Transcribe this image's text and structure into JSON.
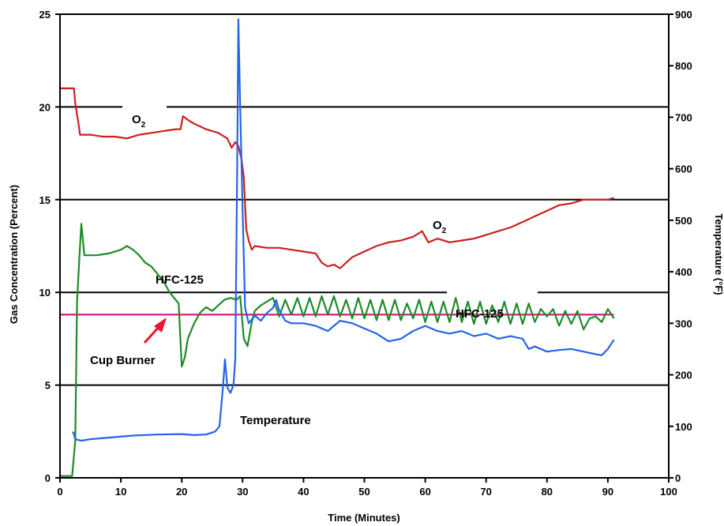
{
  "chart_data": {
    "type": "line",
    "xlabel": "Time (Minutes)",
    "ylabel": "Gas Concentration (Percent)",
    "y2label": "Temperature (°F)",
    "xlim": [
      0,
      100
    ],
    "ylim": [
      0,
      25
    ],
    "y2lim": [
      0,
      900
    ],
    "xticks": [
      "0",
      "10",
      "20",
      "30",
      "40",
      "50",
      "60",
      "70",
      "80",
      "90",
      "100"
    ],
    "yticks": [
      "0",
      "5",
      "10",
      "15",
      "20",
      "25"
    ],
    "y2ticks": [
      "0",
      "100",
      "200",
      "300",
      "400",
      "500",
      "600",
      "700",
      "800",
      "900"
    ],
    "gridlines_y": [
      5,
      10,
      15,
      20
    ],
    "reference_line": {
      "name": "Cup Burner",
      "value": 8.8,
      "color": "#d6007a"
    },
    "annotations": {
      "o2_upper": "O",
      "o2_upper_sub": "2",
      "o2_lower": "O",
      "o2_lower_sub": "2",
      "hfc_upper": "HFC-125",
      "hfc_lower": "HFC-125",
      "cup_burner": "Cup Burner",
      "temperature": "Temperature"
    },
    "series": [
      {
        "name": "O2",
        "axis": "left",
        "color": "#cc1f1f",
        "x": [
          0,
          1,
          2.3,
          2.5,
          3,
          3.3,
          5,
          7,
          9,
          11,
          13,
          15,
          17,
          19,
          19.8,
          20.2,
          21,
          22,
          24,
          26,
          27.5,
          28.2,
          28.8,
          29.3,
          29.8,
          30.2,
          30.6,
          31,
          31.5,
          32,
          34,
          36,
          38,
          40,
          42,
          43,
          44,
          45,
          46,
          47,
          48,
          50,
          52,
          54,
          56,
          58,
          59.5,
          60.5,
          62,
          64,
          66,
          68,
          70,
          72,
          74,
          76,
          78,
          80,
          82,
          84,
          86,
          88,
          90,
          91
        ],
        "y": [
          21,
          21,
          21,
          20.2,
          19.2,
          18.5,
          18.5,
          18.4,
          18.4,
          18.3,
          18.5,
          18.6,
          18.7,
          18.8,
          18.8,
          19.5,
          19.3,
          19.1,
          18.8,
          18.6,
          18.3,
          17.8,
          18.1,
          17.9,
          17.2,
          16.2,
          13.4,
          12.8,
          12.3,
          12.5,
          12.4,
          12.4,
          12.3,
          12.2,
          12.1,
          11.6,
          11.4,
          11.5,
          11.3,
          11.6,
          11.9,
          12.2,
          12.5,
          12.7,
          12.8,
          13.0,
          13.3,
          12.7,
          12.9,
          12.7,
          12.8,
          12.9,
          13.1,
          13.3,
          13.5,
          13.8,
          14.1,
          14.4,
          14.7,
          14.8,
          15.0,
          15.0,
          15.0,
          15.1
        ]
      },
      {
        "name": "HFC-125",
        "axis": "left",
        "color": "#1f8a2a",
        "x": [
          0,
          2,
          2.5,
          2.8,
          3.2,
          3.5,
          4,
          6,
          8,
          10,
          11,
          12,
          13,
          14,
          15,
          16,
          17,
          18,
          19,
          19.5,
          20,
          20.5,
          21,
          22,
          23,
          24,
          25,
          26,
          27,
          28,
          29,
          29.6,
          30.2,
          30.8,
          31.5,
          32,
          33,
          34,
          35,
          36,
          37,
          38,
          39,
          40,
          41,
          42,
          43,
          44,
          45,
          46,
          47,
          48,
          49,
          50,
          51,
          52,
          53,
          54,
          55,
          56,
          57,
          58,
          59,
          60,
          61,
          62,
          63,
          64,
          65,
          66,
          67,
          68,
          69,
          70,
          71,
          72,
          73,
          74,
          75,
          76,
          77,
          78,
          79,
          80,
          81,
          82,
          83,
          84,
          85,
          86,
          87,
          88,
          89,
          90,
          91
        ],
        "y": [
          0.1,
          0.1,
          2.0,
          9.5,
          12.0,
          13.7,
          12.0,
          12.0,
          12.1,
          12.3,
          12.5,
          12.3,
          12.0,
          11.6,
          11.4,
          11.0,
          10.6,
          10.0,
          9.6,
          9.4,
          6.0,
          6.5,
          7.5,
          8.3,
          8.9,
          9.2,
          9.0,
          9.3,
          9.6,
          9.7,
          9.6,
          9.8,
          7.5,
          7.1,
          8.4,
          9.0,
          9.3,
          9.5,
          9.7,
          8.7,
          9.6,
          8.8,
          9.7,
          8.7,
          9.7,
          8.7,
          9.8,
          8.8,
          9.8,
          8.7,
          9.6,
          8.6,
          9.7,
          8.6,
          9.6,
          8.5,
          9.6,
          8.5,
          9.6,
          8.5,
          9.4,
          8.6,
          9.6,
          8.4,
          9.5,
          8.4,
          9.5,
          8.4,
          9.7,
          8.4,
          9.5,
          8.3,
          9.5,
          8.3,
          9.3,
          8.4,
          9.5,
          8.3,
          9.4,
          8.3,
          9.4,
          8.4,
          9.1,
          8.7,
          9.1,
          8.2,
          9.0,
          8.3,
          9.0,
          8.0,
          8.6,
          8.7,
          8.4,
          9.1,
          8.6
        ]
      },
      {
        "name": "Temperature",
        "axis": "right",
        "color": "#2563e8",
        "x": [
          2,
          2.2,
          2.5,
          3.5,
          5,
          8,
          12,
          16,
          20,
          22,
          24,
          25.5,
          26.2,
          26.8,
          27.1,
          27.5,
          28,
          28.5,
          28.8,
          29.1,
          29.3,
          29.6,
          30,
          30.4,
          31,
          32,
          33,
          34,
          35,
          35.5,
          36,
          37,
          38,
          40,
          42,
          44,
          46,
          48,
          50,
          52,
          54,
          56,
          58,
          60,
          62,
          64,
          66,
          68,
          70,
          72,
          74,
          76,
          77,
          78,
          80,
          82,
          84,
          86,
          88,
          89,
          90,
          91
        ],
        "y": [
          88,
          88,
          75,
          72,
          75,
          78,
          82,
          84,
          85,
          83,
          84,
          90,
          100,
          180,
          230,
          175,
          165,
          180,
          230,
          600,
          890,
          720,
          520,
          330,
          300,
          315,
          305,
          320,
          330,
          345,
          325,
          305,
          300,
          300,
          295,
          285,
          305,
          300,
          290,
          280,
          265,
          270,
          285,
          295,
          285,
          280,
          285,
          275,
          280,
          270,
          275,
          270,
          250,
          255,
          245,
          248,
          250,
          245,
          240,
          238,
          250,
          268
        ]
      }
    ]
  }
}
